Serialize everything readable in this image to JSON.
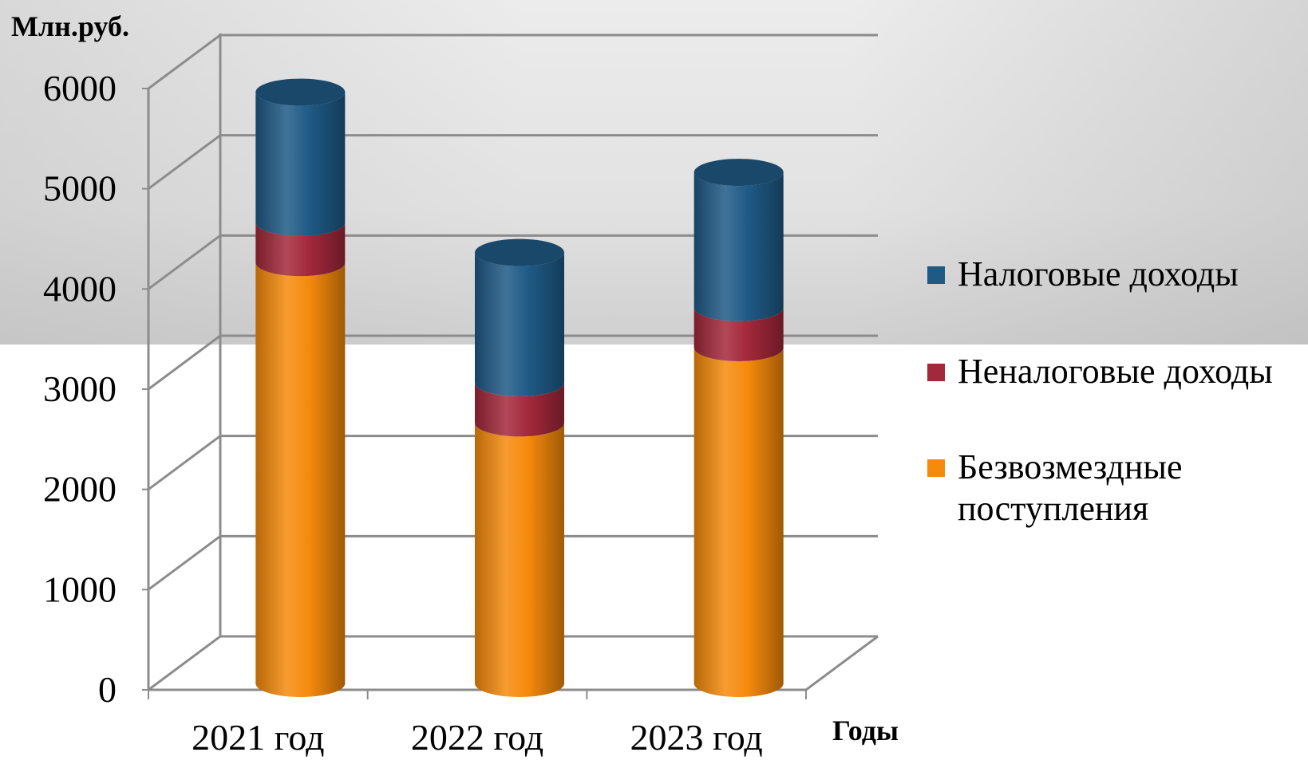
{
  "chart_data": {
    "type": "bar",
    "stacked": true,
    "style": "3d-cylinder",
    "categories": [
      "2021 год",
      "2022 год",
      "2023 год"
    ],
    "series": [
      {
        "name": "Безвозмездные поступления",
        "color": "#f58a0b",
        "values": [
          4200,
          2600,
          3350
        ]
      },
      {
        "name": "Неналоговые доходы",
        "color": "#a3283b",
        "values": [
          400,
          400,
          400
        ]
      },
      {
        "name": "Налоговые доходы",
        "color": "#1f5a86",
        "values": [
          1300,
          1300,
          1350
        ]
      }
    ],
    "ylabel": "Млн.руб.",
    "xlabel": "Годы",
    "ylim": [
      0,
      6000
    ],
    "yticks": [
      "0",
      "1000",
      "2000",
      "3000",
      "4000",
      "5000",
      "6000"
    ],
    "grid": true,
    "legend_position": "right"
  },
  "legend_items": [
    {
      "label": "Налоговые доходы",
      "color": "#1f5a86"
    },
    {
      "label": "Неналоговые доходы",
      "color": "#a3283b"
    },
    {
      "label": "Безвозмездные поступления",
      "color": "#f58a0b"
    }
  ]
}
